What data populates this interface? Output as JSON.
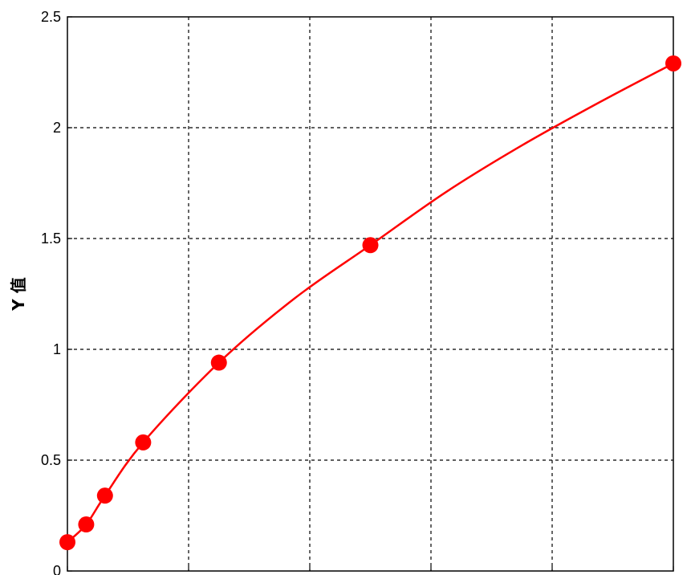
{
  "chart_data": {
    "type": "line",
    "title": "",
    "xlabel": "",
    "ylabel": "Y 值",
    "xlim": [
      0,
      1000
    ],
    "ylim": [
      0,
      2.5
    ],
    "x_ticks": [
      0,
      200,
      400,
      600,
      800,
      1000
    ],
    "y_ticks": [
      0,
      0.5,
      1,
      1.5,
      2,
      2.5
    ],
    "y_tick_labels": [
      "0",
      "0.5",
      "1",
      "1.5",
      "2",
      "2.5"
    ],
    "grid": true,
    "grid_style": "dashed",
    "series": [
      {
        "color": "#ff0000",
        "marker": "filled-circle",
        "x": [
          0,
          31,
          62,
          125,
          250,
          500,
          1000
        ],
        "y": [
          0.13,
          0.21,
          0.34,
          0.58,
          0.94,
          1.47,
          2.29
        ]
      }
    ],
    "fit_curve": {
      "color": "#ff0000",
      "x": [
        0,
        31,
        62,
        125,
        250,
        375,
        500,
        625,
        750,
        875,
        1000
      ],
      "y": [
        0.13,
        0.21,
        0.34,
        0.58,
        0.94,
        1.23,
        1.47,
        1.71,
        1.92,
        2.11,
        2.29
      ]
    }
  }
}
